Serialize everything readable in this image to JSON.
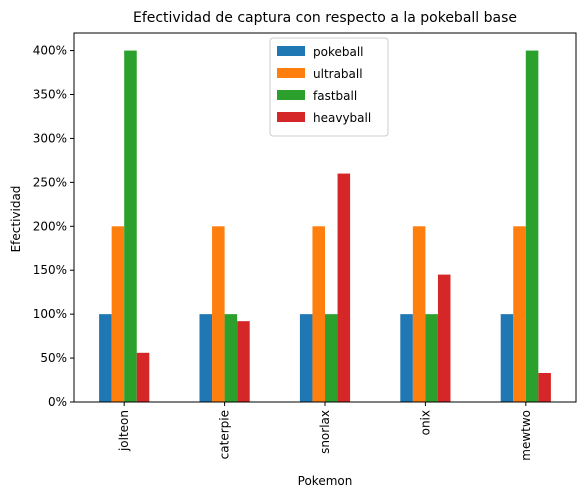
{
  "chart_data": {
    "type": "bar",
    "title": "Efectividad de captura con respecto a la pokeball base",
    "xlabel": "Pokemon",
    "ylabel": "Efectividad",
    "categories": [
      "jolteon",
      "caterpie",
      "snorlax",
      "onix",
      "mewtwo"
    ],
    "series": [
      {
        "name": "pokeball",
        "values": [
          100,
          100,
          100,
          100,
          100
        ]
      },
      {
        "name": "ultraball",
        "values": [
          200,
          200,
          200,
          200,
          200
        ]
      },
      {
        "name": "fastball",
        "values": [
          400,
          100,
          100,
          100,
          400
        ]
      },
      {
        "name": "heavyball",
        "values": [
          56,
          92,
          260,
          145,
          33
        ]
      }
    ],
    "ylim": [
      0,
      420
    ],
    "yticks": [
      0,
      50,
      100,
      150,
      200,
      250,
      300,
      350,
      400
    ],
    "ytick_labels": [
      "0%",
      "50%",
      "100%",
      "150%",
      "200%",
      "250%",
      "300%",
      "350%",
      "400%"
    ],
    "grid": false,
    "legend_position": "top-center",
    "colors": [
      "#1f77b4",
      "#ff7f0e",
      "#2ca02c",
      "#d62728"
    ]
  }
}
